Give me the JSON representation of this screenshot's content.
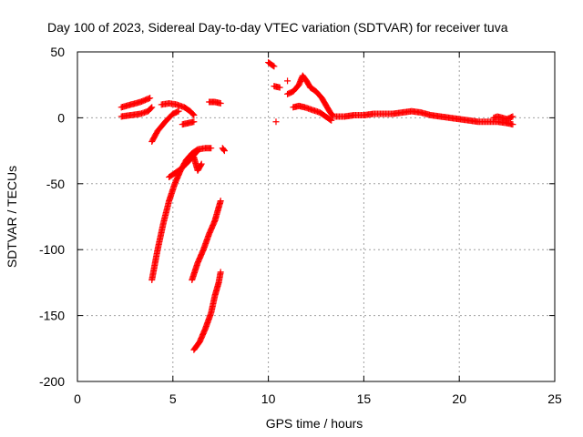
{
  "chart_data": {
    "type": "scatter",
    "title": "Day 100 of 2023, Sidereal Day-to-day VTEC variation (SDTVAR) for receiver tuva",
    "xlabel": "GPS time / hours",
    "ylabel": "SDTVAR / TECUs",
    "xlim": [
      0,
      25
    ],
    "ylim": [
      -200,
      50
    ],
    "xticks": [
      0,
      5,
      10,
      15,
      20,
      25
    ],
    "yticks": [
      -200,
      -150,
      -100,
      -50,
      0,
      50
    ],
    "grid": true,
    "marker": "+",
    "color": "#ff0000",
    "segments": [
      {
        "name": "arc-a",
        "points": [
          [
            2.3,
            8
          ],
          [
            2.8,
            10
          ],
          [
            3.3,
            12
          ],
          [
            3.8,
            15
          ]
        ]
      },
      {
        "name": "arc-b",
        "points": [
          [
            2.3,
            1
          ],
          [
            2.8,
            2
          ],
          [
            3.3,
            3
          ],
          [
            3.7,
            5
          ],
          [
            3.9,
            8
          ]
        ]
      },
      {
        "name": "arc-c",
        "points": [
          [
            3.9,
            -18
          ],
          [
            4.2,
            -10
          ],
          [
            4.6,
            -3
          ],
          [
            5.0,
            3
          ],
          [
            5.3,
            5
          ]
        ]
      },
      {
        "name": "arc-d",
        "points": [
          [
            4.4,
            10
          ],
          [
            4.8,
            11
          ],
          [
            5.2,
            10
          ],
          [
            5.6,
            8
          ],
          [
            5.9,
            5
          ],
          [
            6.1,
            2
          ]
        ]
      },
      {
        "name": "arc-e",
        "points": [
          [
            5.5,
            -5
          ],
          [
            5.8,
            -4
          ],
          [
            6.1,
            -3
          ]
        ]
      },
      {
        "name": "arc-f",
        "points": [
          [
            6.9,
            12
          ],
          [
            7.2,
            12
          ],
          [
            7.5,
            11
          ]
        ]
      },
      {
        "name": "arc-g",
        "points": [
          [
            7.6,
            -23
          ],
          [
            7.7,
            -25
          ]
        ]
      },
      {
        "name": "arc-h",
        "points": [
          [
            3.9,
            -123
          ],
          [
            4.2,
            -100
          ],
          [
            4.5,
            -80
          ],
          [
            4.8,
            -63
          ],
          [
            5.1,
            -50
          ],
          [
            5.4,
            -40
          ],
          [
            5.7,
            -32
          ],
          [
            6.0,
            -27
          ],
          [
            6.3,
            -24
          ],
          [
            6.7,
            -23
          ],
          [
            7.0,
            -23
          ]
        ]
      },
      {
        "name": "arc-i",
        "points": [
          [
            4.8,
            -45
          ],
          [
            5.3,
            -40
          ],
          [
            5.7,
            -35
          ],
          [
            6.0,
            -30
          ],
          [
            6.3,
            -25
          ]
        ]
      },
      {
        "name": "arc-j",
        "points": [
          [
            6.1,
            -30
          ],
          [
            6.3,
            -40
          ],
          [
            6.5,
            -35
          ]
        ]
      },
      {
        "name": "arc-k",
        "points": [
          [
            6.0,
            -123
          ],
          [
            6.3,
            -110
          ],
          [
            6.6,
            -100
          ],
          [
            6.9,
            -88
          ],
          [
            7.2,
            -78
          ],
          [
            7.5,
            -63
          ]
        ]
      },
      {
        "name": "arc-l",
        "points": [
          [
            6.1,
            -176
          ],
          [
            6.4,
            -170
          ],
          [
            6.7,
            -160
          ],
          [
            7.0,
            -148
          ],
          [
            7.2,
            -135
          ],
          [
            7.4,
            -125
          ],
          [
            7.5,
            -117
          ]
        ]
      },
      {
        "name": "arc-m",
        "points": [
          [
            10.0,
            42
          ],
          [
            10.3,
            39
          ]
        ]
      },
      {
        "name": "arc-n",
        "points": [
          [
            10.3,
            24
          ],
          [
            10.6,
            23
          ]
        ]
      },
      {
        "name": "arc-o",
        "points": [
          [
            10.4,
            -3
          ]
        ]
      },
      {
        "name": "arc-p",
        "points": [
          [
            11.0,
            28
          ]
        ]
      },
      {
        "name": "arc-q",
        "points": [
          [
            11.0,
            18
          ],
          [
            11.3,
            20
          ],
          [
            11.6,
            25
          ],
          [
            11.8,
            32
          ],
          [
            12.0,
            28
          ],
          [
            12.2,
            23
          ],
          [
            12.5,
            20
          ],
          [
            12.8,
            15
          ],
          [
            13.0,
            10
          ],
          [
            13.2,
            5
          ],
          [
            13.4,
            1
          ]
        ]
      },
      {
        "name": "arc-r",
        "points": [
          [
            11.3,
            8
          ],
          [
            11.6,
            9
          ],
          [
            11.9,
            8
          ],
          [
            12.3,
            6
          ],
          [
            12.7,
            4
          ],
          [
            13.0,
            1
          ],
          [
            13.3,
            -2
          ]
        ]
      },
      {
        "name": "arc-s",
        "points": [
          [
            13.5,
            1
          ],
          [
            14.0,
            1
          ],
          [
            14.5,
            2
          ],
          [
            15.0,
            2
          ],
          [
            15.5,
            3
          ],
          [
            16.0,
            3
          ],
          [
            16.5,
            3
          ],
          [
            17.0,
            4
          ],
          [
            17.5,
            5
          ],
          [
            18.0,
            4
          ],
          [
            18.5,
            2
          ],
          [
            19.0,
            1
          ],
          [
            19.5,
            0
          ],
          [
            20.0,
            -1
          ],
          [
            20.5,
            -2
          ],
          [
            21.0,
            -3
          ],
          [
            21.5,
            -3
          ],
          [
            22.0,
            -3
          ],
          [
            22.5,
            -4
          ],
          [
            22.8,
            -5
          ]
        ]
      },
      {
        "name": "arc-t",
        "points": [
          [
            21.8,
            0
          ],
          [
            22.0,
            1
          ],
          [
            22.5,
            -1
          ],
          [
            22.8,
            1
          ]
        ]
      }
    ]
  }
}
